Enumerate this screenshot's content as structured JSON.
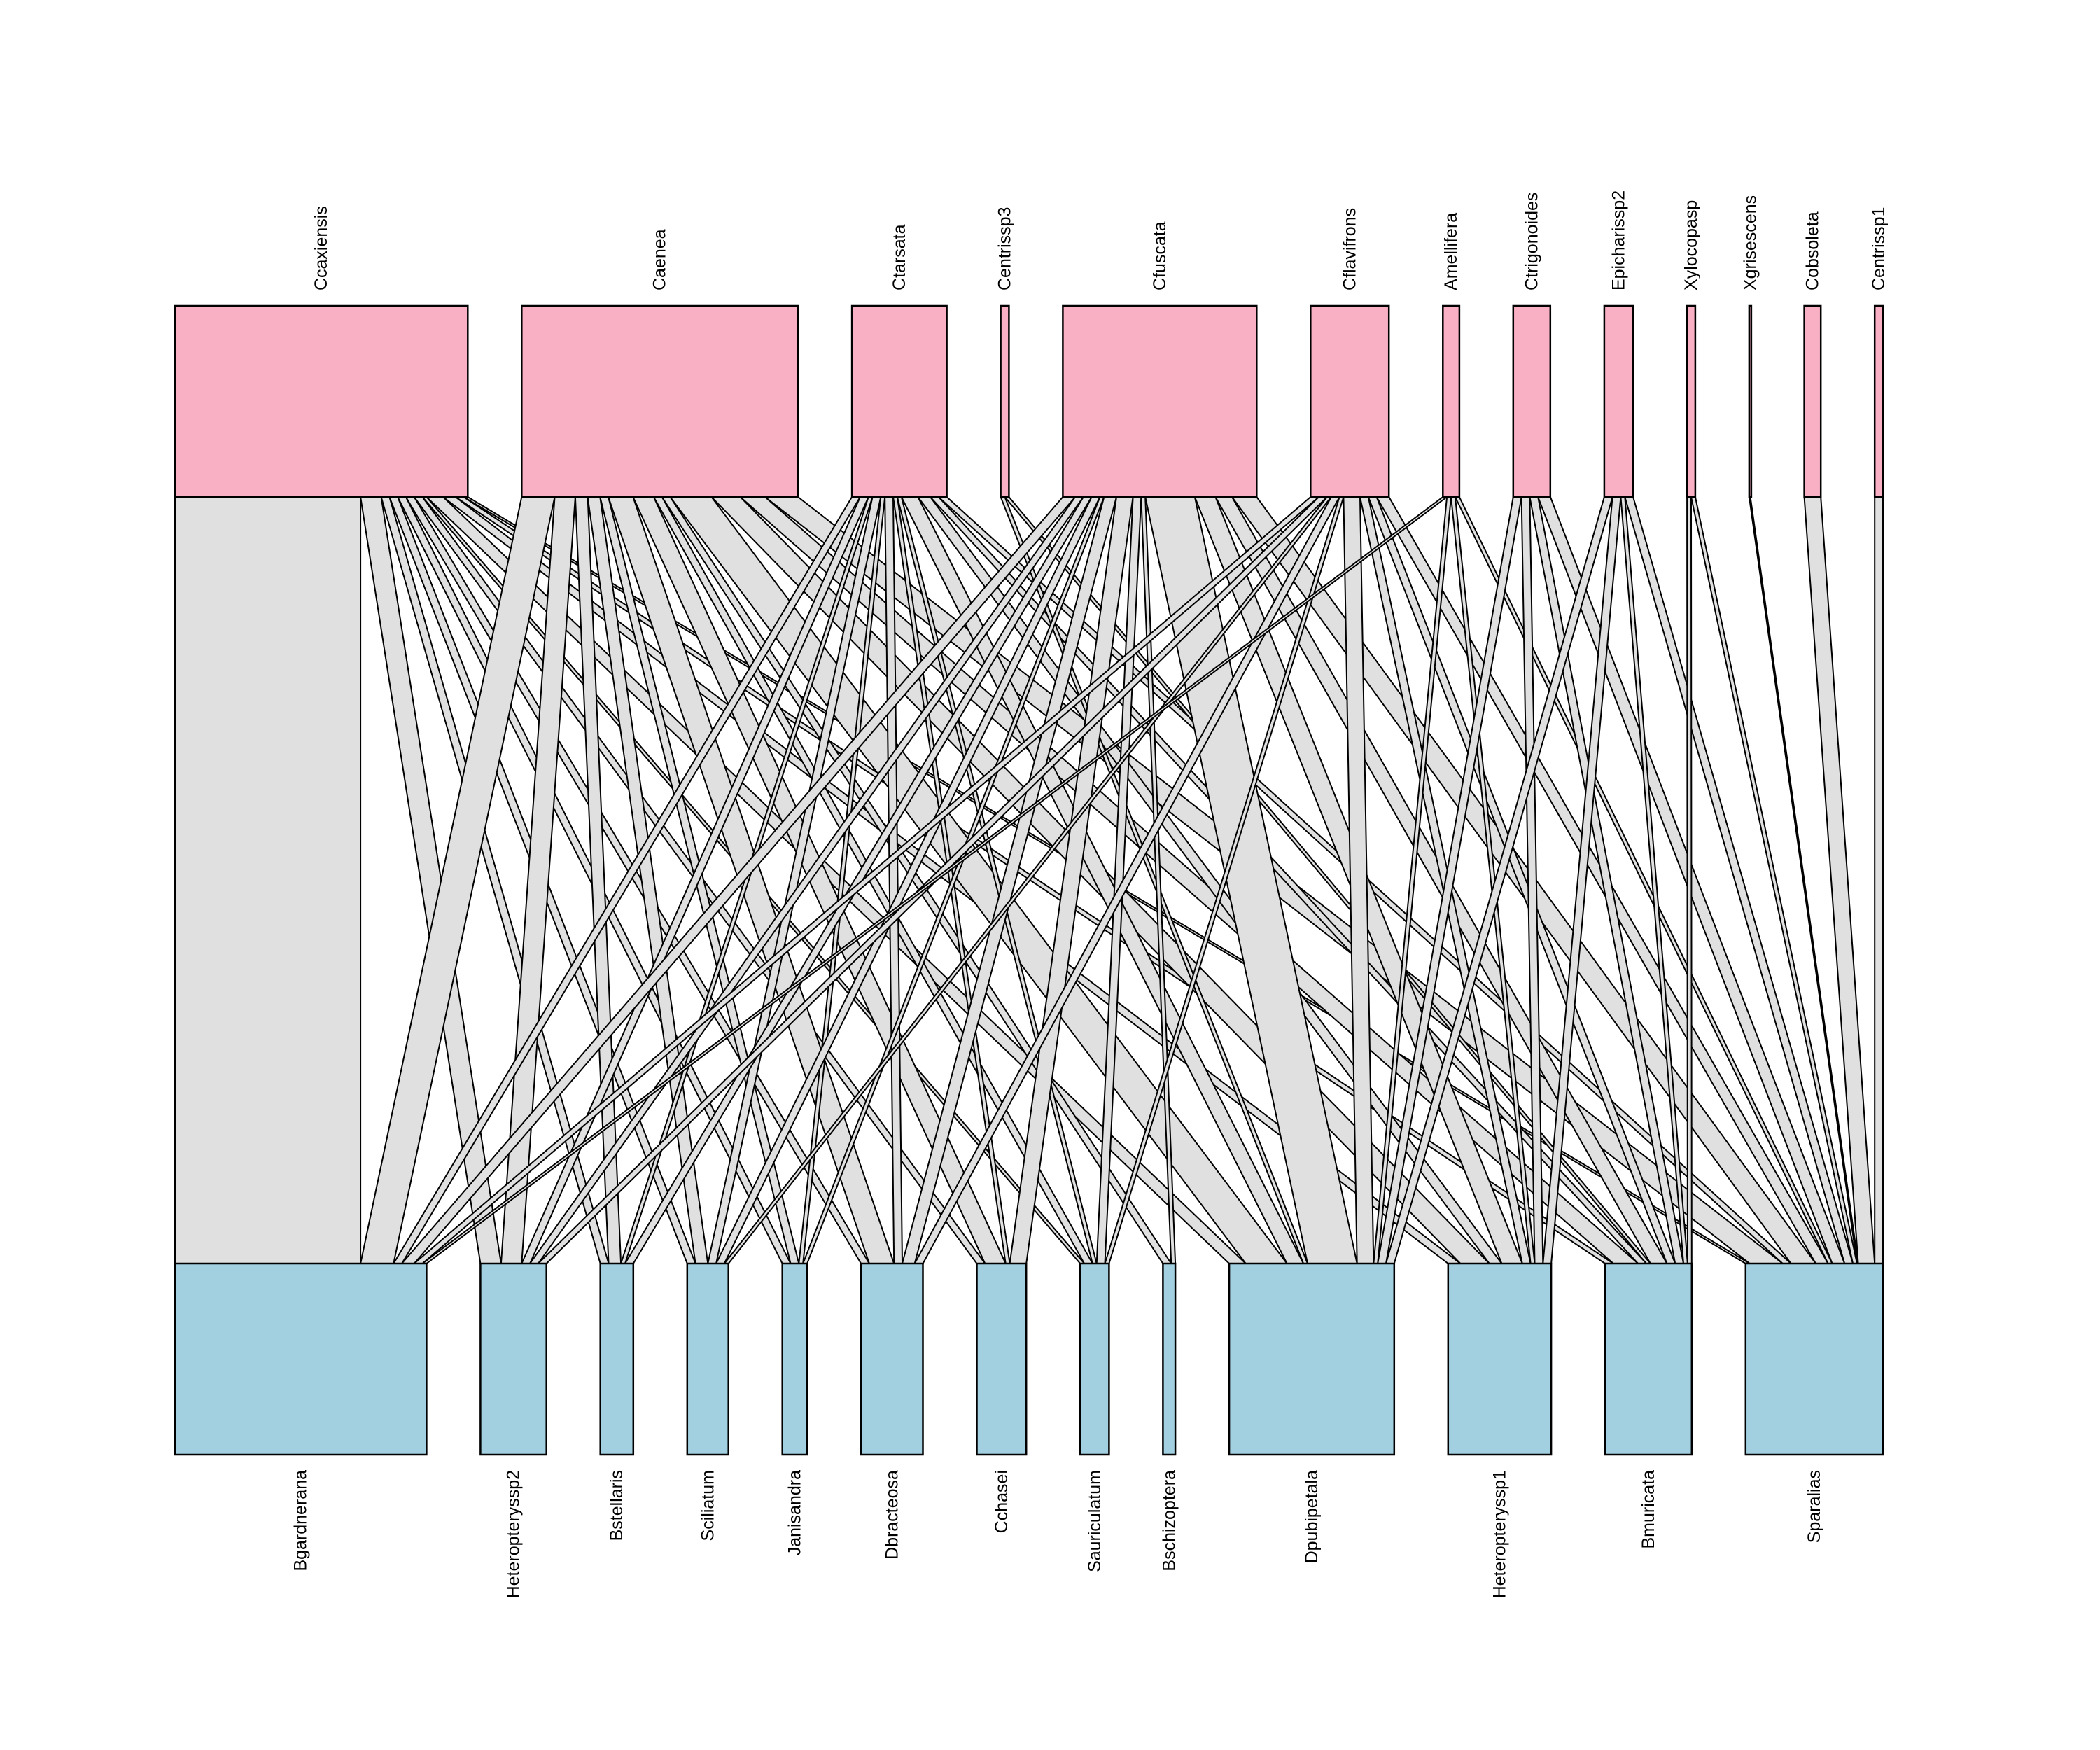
{
  "colors": {
    "upper_fill": "#FAB0C4",
    "lower_fill": "#A3D0E0",
    "link_fill": "#E0E0E0",
    "stroke": "#000000",
    "background": "#FFFFFF"
  },
  "upper_nodes": [
    {
      "name": "Ccaxiensis"
    },
    {
      "name": "Caenea"
    },
    {
      "name": "Ctarsata"
    },
    {
      "name": "Centrissp3"
    },
    {
      "name": "Cfuscata"
    },
    {
      "name": "Cflavifrons"
    },
    {
      "name": "Amellifera"
    },
    {
      "name": "Ctrigonoides"
    },
    {
      "name": "Epicharissp2"
    },
    {
      "name": "Xylocopasp"
    },
    {
      "name": "Xgrisescens"
    },
    {
      "name": "Cobsoleta"
    },
    {
      "name": "Centrissp1"
    }
  ],
  "lower_nodes": [
    {
      "name": "Bgardnerana"
    },
    {
      "name": "Heteropteryssp2"
    },
    {
      "name": "Bstellaris"
    },
    {
      "name": "Sciliatum"
    },
    {
      "name": "Janisandra"
    },
    {
      "name": "Dbracteosa"
    },
    {
      "name": "Cchasei"
    },
    {
      "name": "Sauriculatum"
    },
    {
      "name": "Bschizoptera"
    },
    {
      "name": "Dpubipetala"
    },
    {
      "name": "Heteropteryssp1"
    },
    {
      "name": "Bmuricata"
    },
    {
      "name": "Sparalias"
    }
  ],
  "links": [
    {
      "upper": "Ccaxiensis",
      "lower": "Bgardnerana",
      "weight": 45
    },
    {
      "upper": "Ccaxiensis",
      "lower": "Heteropteryssp2",
      "weight": 5
    },
    {
      "upper": "Ccaxiensis",
      "lower": "Bstellaris",
      "weight": 2
    },
    {
      "upper": "Ccaxiensis",
      "lower": "Sciliatum",
      "weight": 2
    },
    {
      "upper": "Ccaxiensis",
      "lower": "Janisandra",
      "weight": 2
    },
    {
      "upper": "Ccaxiensis",
      "lower": "Dbracteosa",
      "weight": 2
    },
    {
      "upper": "Ccaxiensis",
      "lower": "Cchasei",
      "weight": 2
    },
    {
      "upper": "Ccaxiensis",
      "lower": "Sauriculatum",
      "weight": 1
    },
    {
      "upper": "Ccaxiensis",
      "lower": "Dpubipetala",
      "weight": 4
    },
    {
      "upper": "Ccaxiensis",
      "lower": "Heteropteryssp1",
      "weight": 3
    },
    {
      "upper": "Ccaxiensis",
      "lower": "Bmuricata",
      "weight": 2
    },
    {
      "upper": "Ccaxiensis",
      "lower": "Sparalias",
      "weight": 1
    },
    {
      "upper": "Caenea",
      "lower": "Bgardnerana",
      "weight": 8
    },
    {
      "upper": "Caenea",
      "lower": "Heteropteryssp2",
      "weight": 5
    },
    {
      "upper": "Caenea",
      "lower": "Bstellaris",
      "weight": 3
    },
    {
      "upper": "Caenea",
      "lower": "Sciliatum",
      "weight": 3
    },
    {
      "upper": "Caenea",
      "lower": "Janisandra",
      "weight": 2
    },
    {
      "upper": "Caenea",
      "lower": "Dbracteosa",
      "weight": 6
    },
    {
      "upper": "Caenea",
      "lower": "Cchasei",
      "weight": 5
    },
    {
      "upper": "Caenea",
      "lower": "Sauriculatum",
      "weight": 2
    },
    {
      "upper": "Caenea",
      "lower": "Bschizoptera",
      "weight": 2
    },
    {
      "upper": "Caenea",
      "lower": "Dpubipetala",
      "weight": 10
    },
    {
      "upper": "Caenea",
      "lower": "Heteropteryssp1",
      "weight": 7
    },
    {
      "upper": "Caenea",
      "lower": "Bmuricata",
      "weight": 6
    },
    {
      "upper": "Caenea",
      "lower": "Sparalias",
      "weight": 8
    },
    {
      "upper": "Ctarsata",
      "lower": "Bgardnerana",
      "weight": 2
    },
    {
      "upper": "Ctarsata",
      "lower": "Heteropteryssp2",
      "weight": 2
    },
    {
      "upper": "Ctarsata",
      "lower": "Bstellaris",
      "weight": 1
    },
    {
      "upper": "Ctarsata",
      "lower": "Sciliatum",
      "weight": 2
    },
    {
      "upper": "Ctarsata",
      "lower": "Janisandra",
      "weight": 1
    },
    {
      "upper": "Ctarsata",
      "lower": "Dbracteosa",
      "weight": 2
    },
    {
      "upper": "Ctarsata",
      "lower": "Cchasei",
      "weight": 1
    },
    {
      "upper": "Ctarsata",
      "lower": "Sauriculatum",
      "weight": 1
    },
    {
      "upper": "Ctarsata",
      "lower": "Dpubipetala",
      "weight": 4
    },
    {
      "upper": "Ctarsata",
      "lower": "Heteropteryssp1",
      "weight": 3
    },
    {
      "upper": "Ctarsata",
      "lower": "Bmuricata",
      "weight": 2
    },
    {
      "upper": "Ctarsata",
      "lower": "Sparalias",
      "weight": 2
    },
    {
      "upper": "Centrissp3",
      "lower": "Dpubipetala",
      "weight": 1
    },
    {
      "upper": "Centrissp3",
      "lower": "Bmuricata",
      "weight": 1
    },
    {
      "upper": "Cfuscata",
      "lower": "Bgardnerana",
      "weight": 3
    },
    {
      "upper": "Cfuscata",
      "lower": "Heteropteryssp2",
      "weight": 2
    },
    {
      "upper": "Cfuscata",
      "lower": "Bstellaris",
      "weight": 2
    },
    {
      "upper": "Cfuscata",
      "lower": "Sciliatum",
      "weight": 2
    },
    {
      "upper": "Cfuscata",
      "lower": "Janisandra",
      "weight": 1
    },
    {
      "upper": "Cfuscata",
      "lower": "Dbracteosa",
      "weight": 3
    },
    {
      "upper": "Cfuscata",
      "lower": "Cchasei",
      "weight": 4
    },
    {
      "upper": "Cfuscata",
      "lower": "Sauriculatum",
      "weight": 2
    },
    {
      "upper": "Cfuscata",
      "lower": "Bschizoptera",
      "weight": 1
    },
    {
      "upper": "Cfuscata",
      "lower": "Dpubipetala",
      "weight": 12
    },
    {
      "upper": "Cfuscata",
      "lower": "Heteropteryssp1",
      "weight": 5
    },
    {
      "upper": "Cfuscata",
      "lower": "Bmuricata",
      "weight": 4
    },
    {
      "upper": "Cfuscata",
      "lower": "Sparalias",
      "weight": 6
    },
    {
      "upper": "Cflavifrons",
      "lower": "Bgardnerana",
      "weight": 2
    },
    {
      "upper": "Cflavifrons",
      "lower": "Heteropteryssp2",
      "weight": 2
    },
    {
      "upper": "Cflavifrons",
      "lower": "Sciliatum",
      "weight": 1
    },
    {
      "upper": "Cflavifrons",
      "lower": "Dbracteosa",
      "weight": 2
    },
    {
      "upper": "Cflavifrons",
      "lower": "Sauriculatum",
      "weight": 1
    },
    {
      "upper": "Cflavifrons",
      "lower": "Dpubipetala",
      "weight": 4
    },
    {
      "upper": "Cflavifrons",
      "lower": "Heteropteryssp1",
      "weight": 2
    },
    {
      "upper": "Cflavifrons",
      "lower": "Bmuricata",
      "weight": 2
    },
    {
      "upper": "Cflavifrons",
      "lower": "Sparalias",
      "weight": 3
    },
    {
      "upper": "Amellifera",
      "lower": "Bgardnerana",
      "weight": 1
    },
    {
      "upper": "Amellifera",
      "lower": "Dpubipetala",
      "weight": 1
    },
    {
      "upper": "Amellifera",
      "lower": "Heteropteryssp1",
      "weight": 1
    },
    {
      "upper": "Amellifera",
      "lower": "Sparalias",
      "weight": 1
    },
    {
      "upper": "Ctrigonoides",
      "lower": "Dpubipetala",
      "weight": 2
    },
    {
      "upper": "Ctrigonoides",
      "lower": "Heteropteryssp1",
      "weight": 2
    },
    {
      "upper": "Ctrigonoides",
      "lower": "Bmuricata",
      "weight": 2
    },
    {
      "upper": "Ctrigonoides",
      "lower": "Sparalias",
      "weight": 3
    },
    {
      "upper": "Epicharissp2",
      "lower": "Dpubipetala",
      "weight": 2
    },
    {
      "upper": "Epicharissp2",
      "lower": "Heteropteryssp1",
      "weight": 2
    },
    {
      "upper": "Epicharissp2",
      "lower": "Bmuricata",
      "weight": 1
    },
    {
      "upper": "Epicharissp2",
      "lower": "Sparalias",
      "weight": 2
    },
    {
      "upper": "Xylocopasp",
      "lower": "Bmuricata",
      "weight": 1
    },
    {
      "upper": "Xylocopasp",
      "lower": "Sparalias",
      "weight": 1
    },
    {
      "upper": "Xgrisescens",
      "lower": "Sparalias",
      "weight": 0.3
    },
    {
      "upper": "Cobsoleta",
      "lower": "Sparalias",
      "weight": 4
    },
    {
      "upper": "Centrissp1",
      "lower": "Sparalias",
      "weight": 2
    }
  ]
}
